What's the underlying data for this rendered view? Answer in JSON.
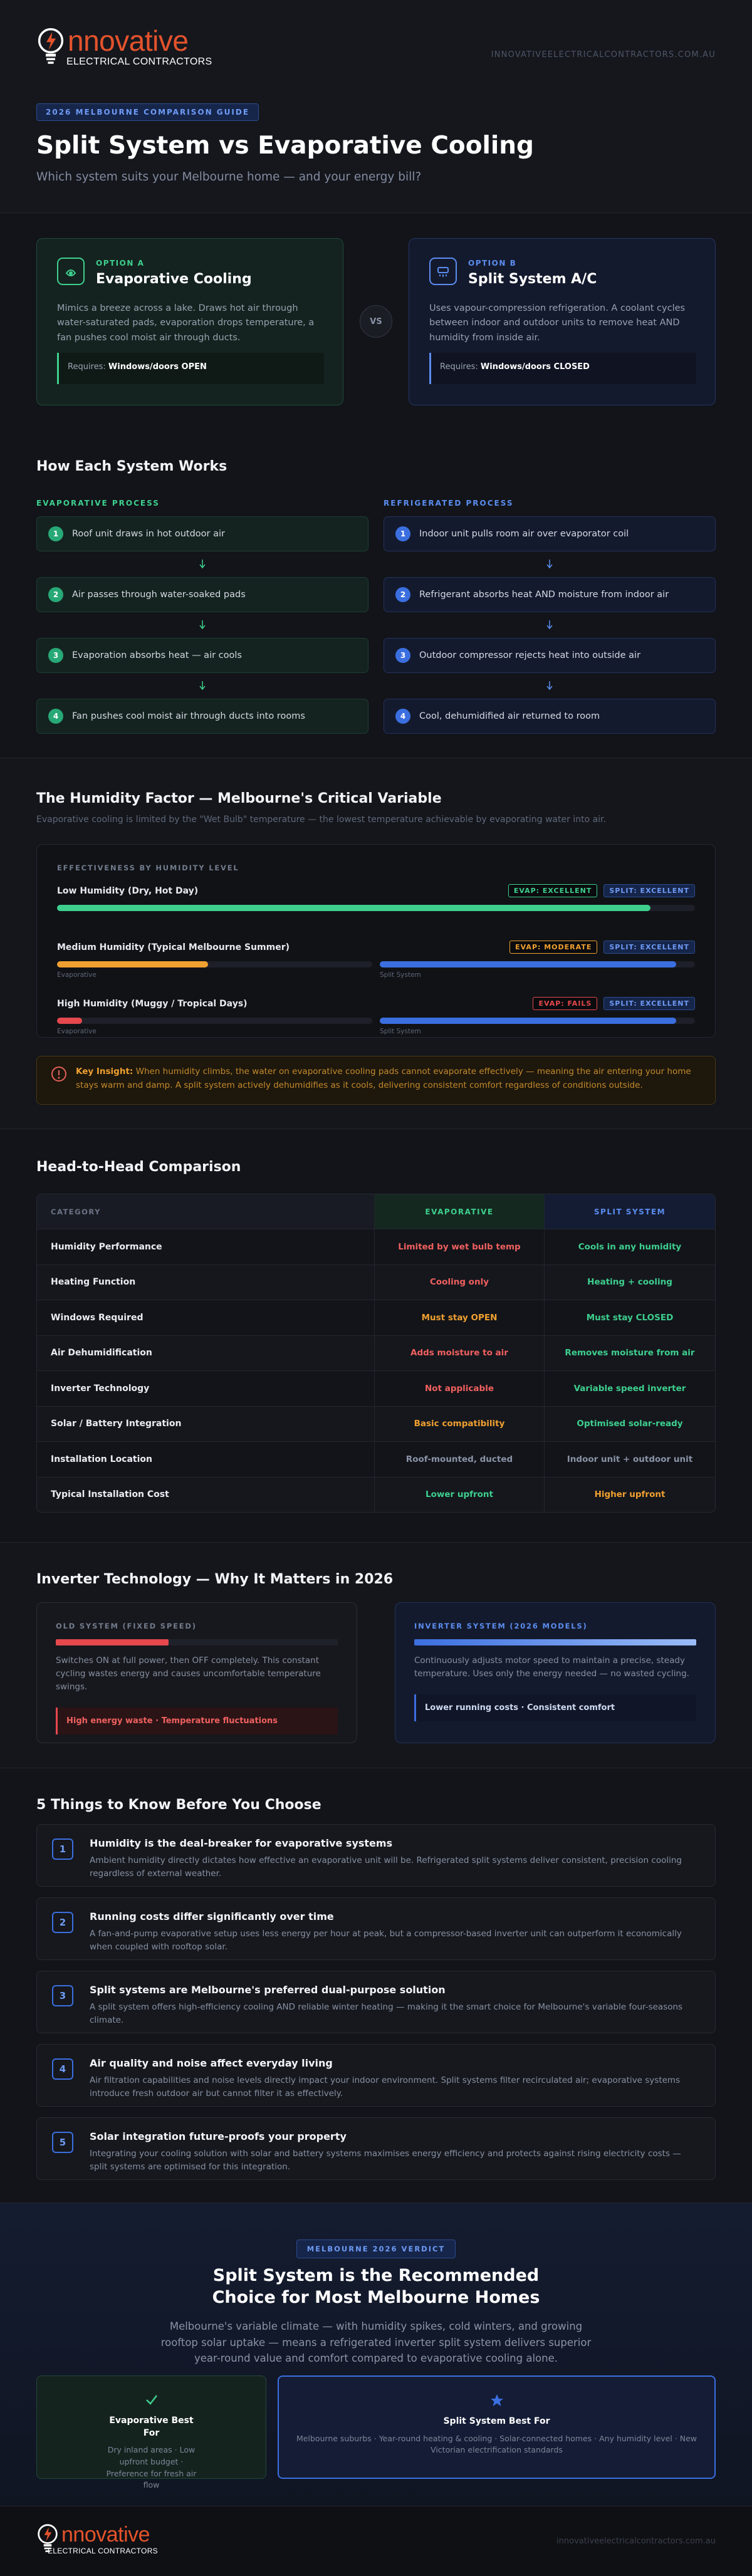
{
  "header": {
    "logo_main": "nnovative",
    "logo_sub": "ELECTRICAL CONTRACTORS",
    "site": "INNOVATIVEELECTRICALCONTRACTORS.COM.AU",
    "badge": "2026 MELBOURNE COMPARISON GUIDE",
    "title": "Split System vs Evaporative Cooling",
    "subtitle": "Which system suits your Melbourne home — and your energy bill?"
  },
  "options": [
    {
      "tag": "OPTION A",
      "title": "Evaporative Cooling",
      "desc": "Mimics a breeze across a lake. Draws hot air through water-saturated pads, evaporation drops temperature, a fan pushes cool moist air through ducts.",
      "req_label": "Requires:",
      "req_value": "Windows/doors OPEN"
    },
    {
      "tag": "OPTION B",
      "title": "Split System A/C",
      "desc": "Uses vapour-compression refrigeration. A coolant cycles between indoor and outdoor units to remove heat AND humidity from inside air.",
      "req_label": "Requires:",
      "req_value": "Windows/doors CLOSED"
    }
  ],
  "vs": "VS",
  "how": {
    "title": "How Each System Works",
    "columns": [
      {
        "label": "EVAPORATIVE PROCESS",
        "steps": [
          {
            "n": 1,
            "text": "Roof unit draws in hot outdoor air"
          },
          {
            "n": 2,
            "text": "Air passes through water-soaked pads"
          },
          {
            "n": 3,
            "text": "Evaporation absorbs heat — air cools"
          },
          {
            "n": 4,
            "text": "Fan pushes cool moist air through ducts into rooms"
          }
        ]
      },
      {
        "label": "REFRIGERATED PROCESS",
        "steps": [
          {
            "n": 1,
            "text": "Indoor unit pulls room air over evaporator coil"
          },
          {
            "n": 2,
            "text": "Refrigerant absorbs heat AND moisture from indoor air"
          },
          {
            "n": 3,
            "text": "Outdoor compressor rejects heat into outside air"
          },
          {
            "n": 4,
            "text": "Cool, dehumidified air returned to room"
          }
        ]
      }
    ]
  },
  "humidity": {
    "title": "The Humidity Factor — Melbourne's Critical Variable",
    "subtitle": "Evaporative cooling is limited by the \"Wet Bulb\" temperature — the lowest temperature achievable by evaporating water into air.",
    "card_title": "EFFECTIVENESS BY HUMIDITY LEVEL",
    "xlim": [
      0,
      100
    ],
    "levels": [
      {
        "name": "Low Humidity (Dry, Hot Day)",
        "evap_badge": "EVAP: EXCELLENT",
        "evap_color": "#3ecf8e",
        "split_badge": "SPLIT: EXCELLENT",
        "bars": [
          {
            "value": 93,
            "color": "#3ecf8e"
          }
        ]
      },
      {
        "name": "Medium Humidity (Typical Melbourne Summer)",
        "evap_badge": "EVAP: MODERATE",
        "evap_color": "#f0a030",
        "split_badge": "SPLIT: EXCELLENT",
        "bars": [
          {
            "label": "Evaporative",
            "value": 48,
            "color": "#f0a030"
          },
          {
            "label": "Split System",
            "value": 94,
            "color": "#3b6fe0"
          }
        ]
      },
      {
        "name": "High Humidity (Muggy / Tropical Days)",
        "evap_badge": "EVAP: FAILS",
        "evap_color": "#e5484d",
        "split_badge": "SPLIT: EXCELLENT",
        "bars": [
          {
            "label": "Evaporative",
            "value": 8,
            "color": "#e5484d"
          },
          {
            "label": "Split System",
            "value": 94,
            "color": "#3b6fe0"
          }
        ]
      }
    ],
    "insight_label": "Key Insight:",
    "insight": "When humidity climbs, the water on evaporative cooling pads cannot evaporate effectively — meaning the air entering your home stays warm and damp. A split system actively dehumidifies as it cools, delivering consistent comfort regardless of conditions outside."
  },
  "comparison": {
    "title": "Head-to-Head Comparison",
    "headers": [
      "CATEGORY",
      "EVAPORATIVE",
      "SPLIT SYSTEM"
    ],
    "rows": [
      {
        "category": "Humidity Performance",
        "evap": {
          "text": "Limited by wet bulb temp",
          "color": "#f0605f"
        },
        "split": {
          "text": "Cools in any humidity",
          "color": "#3ecf8e"
        }
      },
      {
        "category": "Heating Function",
        "evap": {
          "text": "Cooling only",
          "color": "#f0605f"
        },
        "split": {
          "text": "Heating + cooling",
          "color": "#3ecf8e"
        }
      },
      {
        "category": "Windows Required",
        "evap": {
          "text": "Must stay OPEN",
          "color": "#f0a030"
        },
        "split": {
          "text": "Must stay CLOSED",
          "color": "#3ecf8e"
        }
      },
      {
        "category": "Air Dehumidification",
        "evap": {
          "text": "Adds moisture to air",
          "color": "#f0605f"
        },
        "split": {
          "text": "Removes moisture from air",
          "color": "#3ecf8e"
        }
      },
      {
        "category": "Inverter Technology",
        "evap": {
          "text": "Not applicable",
          "color": "#f0605f"
        },
        "split": {
          "text": "Variable speed inverter",
          "color": "#3ecf8e"
        }
      },
      {
        "category": "Solar / Battery Integration",
        "evap": {
          "text": "Basic compatibility",
          "color": "#f0a030"
        },
        "split": {
          "text": "Optimised solar-ready",
          "color": "#3ecf8e"
        }
      },
      {
        "category": "Installation Location",
        "evap": {
          "text": "Roof-mounted, ducted",
          "color": "#8a93a6"
        },
        "split": {
          "text": "Indoor unit + outdoor unit",
          "color": "#8a93a6"
        }
      },
      {
        "category": "Typical Installation Cost",
        "evap": {
          "text": "Lower upfront",
          "color": "#3ecf8e"
        },
        "split": {
          "text": "Higher upfront",
          "color": "#f0a030"
        }
      }
    ]
  },
  "inverter": {
    "title": "Inverter Technology — Why It Matters in 2026",
    "cards": [
      {
        "label": "OLD SYSTEM (FIXED SPEED)",
        "desc": "Switches ON at full power, then OFF completely. This constant cycling wastes energy and causes uncomfortable temperature swings.",
        "note": "High energy waste · Temperature fluctuations"
      },
      {
        "label": "INVERTER SYSTEM (2026 MODELS)",
        "desc": "Continuously adjusts motor speed to maintain a precise, steady temperature. Uses only the energy needed — no wasted cycling.",
        "note": "Lower running costs · Consistent comfort"
      }
    ]
  },
  "things": {
    "title": "5 Things to Know Before You Choose",
    "items": [
      {
        "n": 1,
        "title": "Humidity is the deal-breaker for evaporative systems",
        "text": "Ambient humidity directly dictates how effective an evaporative unit will be. Refrigerated split systems deliver consistent, precision cooling regardless of external weather."
      },
      {
        "n": 2,
        "title": "Running costs differ significantly over time",
        "text": "A fan-and-pump evaporative setup uses less energy per hour at peak, but a compressor-based inverter unit can outperform it economically when coupled with rooftop solar."
      },
      {
        "n": 3,
        "title": "Split systems are Melbourne's preferred dual-purpose solution",
        "text": "A split system offers high-efficiency cooling AND reliable winter heating — making it the smart choice for Melbourne's variable four-seasons climate."
      },
      {
        "n": 4,
        "title": "Air quality and noise affect everyday living",
        "text": "Air filtration capabilities and noise levels directly impact your indoor environment. Split systems filter recirculated air; evaporative systems introduce fresh outdoor air but cannot filter it as effectively."
      },
      {
        "n": 5,
        "title": "Solar integration future-proofs your property",
        "text": "Integrating your cooling solution with solar and battery systems maximises energy efficiency and protects against rising electricity costs — split systems are optimised for this integration."
      }
    ]
  },
  "verdict": {
    "badge": "MELBOURNE 2026 VERDICT",
    "title": "Split System is the Recommended Choice for Most Melbourne Homes",
    "text": "Melbourne's variable climate — with humidity spikes, cold winters, and growing rooftop solar uptake — means a refrigerated inverter split system delivers superior year-round value and comfort compared to evaporative cooling alone.",
    "cards": [
      {
        "title": "Evaporative Best For",
        "text": "Dry inland areas · Low upfront budget · Preference for fresh air flow"
      },
      {
        "title": "Split System Best For",
        "text": "Melbourne suburbs · Year-round heating & cooling · Solar-connected homes · Any humidity level · New Victorian electrification standards"
      }
    ]
  },
  "footer": {
    "logo_main": "nnovative",
    "logo_sub": "ELECTRICAL CONTRACTORS",
    "site": "innovativeelectricalcontractors.com.au"
  }
}
